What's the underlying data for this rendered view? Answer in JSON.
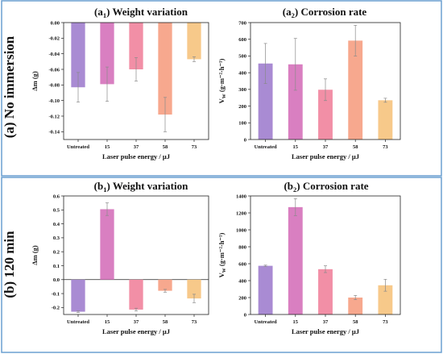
{
  "rows": [
    {
      "label": "(a) No immersion"
    },
    {
      "label": "(b) 120 min"
    }
  ],
  "colors": [
    "#a98bd3",
    "#d97fc1",
    "#f28fa6",
    "#f7a88e",
    "#f7c98a"
  ],
  "chart_data": [
    {
      "type": "bar",
      "title_prefix": "(a",
      "title_sub": "1",
      "title_suffix": ") Weight variation",
      "ylabel": "Δm (g)",
      "xlabel": "Laser pulse energy / μJ",
      "categories": [
        "Untreated",
        "15",
        "37",
        "58",
        "73"
      ],
      "values": [
        -0.083,
        -0.079,
        -0.06,
        -0.118,
        -0.047
      ],
      "errors": [
        0.019,
        0.022,
        0.015,
        0.022,
        0.003
      ],
      "ylim": [
        -0.15,
        0.0
      ],
      "yticks": [
        "-0.14",
        "-0.12",
        "-0.10",
        "-0.08",
        "-0.06",
        "-0.04",
        "-0.02",
        "0.00"
      ]
    },
    {
      "type": "bar",
      "title_prefix": "(a",
      "title_sub": "2",
      "title_suffix": ") Corrosion rate",
      "ylabel": "V_W (g·m⁻²·h⁻¹)",
      "xlabel": "Laser pulse energy / μJ",
      "categories": [
        "Untreated",
        "15",
        "37",
        "58",
        "73"
      ],
      "values": [
        455,
        450,
        298,
        592,
        235
      ],
      "errors": [
        120,
        155,
        65,
        92,
        12
      ],
      "ylim": [
        0,
        700
      ],
      "yticks": [
        "0",
        "100",
        "200",
        "300",
        "400",
        "500",
        "600",
        "700"
      ]
    },
    {
      "type": "bar",
      "title_prefix": "(b",
      "title_sub": "1",
      "title_suffix": ") Weight variation",
      "ylabel": "Δm (g)",
      "xlabel": "Laser pulse energy / μJ",
      "categories": [
        "Untreated",
        "15",
        "37",
        "58",
        "73"
      ],
      "values": [
        -0.23,
        0.505,
        -0.215,
        -0.08,
        -0.135
      ],
      "errors": [
        0.005,
        0.045,
        0.01,
        0.01,
        0.03
      ],
      "ylim": [
        -0.25,
        0.6
      ],
      "yticks": [
        "-0.2",
        "-0.1",
        "0.0",
        "0.1",
        "0.2",
        "0.3",
        "0.4",
        "0.5",
        "0.6"
      ]
    },
    {
      "type": "bar",
      "title_prefix": "(b",
      "title_sub": "2",
      "title_suffix": ") Corrosion rate",
      "ylabel": "V_W (g·m⁻²·h⁻¹)",
      "xlabel": "Laser pulse energy / μJ",
      "categories": [
        "Untreated",
        "15",
        "37",
        "58",
        "73"
      ],
      "values": [
        575,
        1268,
        535,
        200,
        345
      ],
      "errors": [
        8,
        100,
        40,
        25,
        70
      ],
      "ylim": [
        0,
        1400
      ],
      "yticks": [
        "0",
        "200",
        "400",
        "600",
        "800",
        "1000",
        "1200",
        "1400"
      ]
    }
  ]
}
